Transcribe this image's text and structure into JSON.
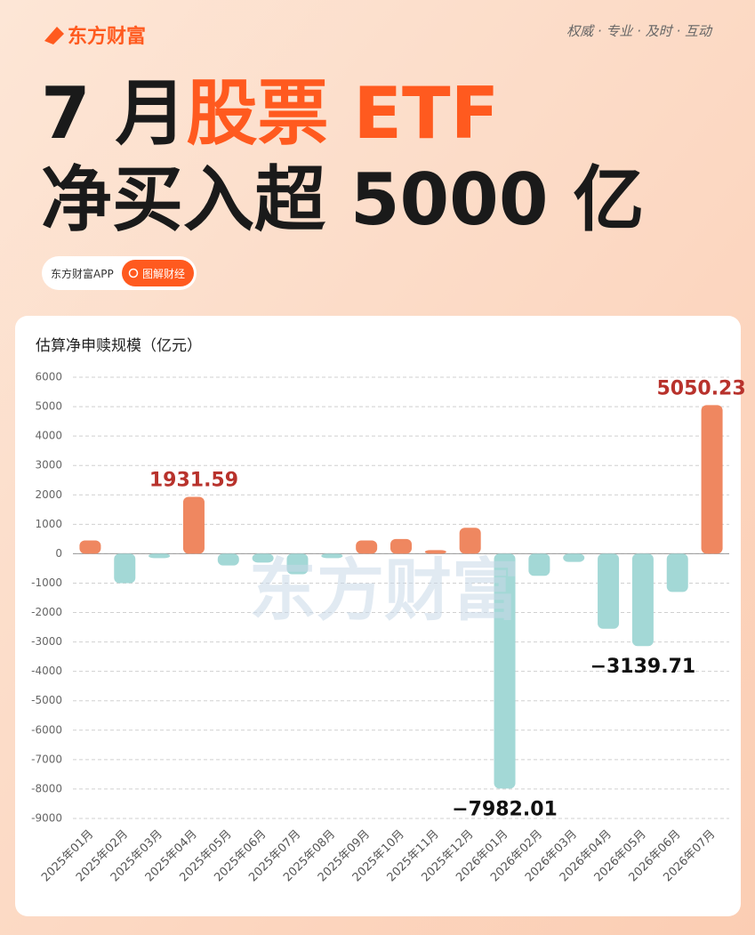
{
  "header": {
    "logo": "东方财富",
    "slogan": "权威 · 专业 · 及时 · 互动",
    "title_line1": [
      "7 月",
      "股票 ETF"
    ],
    "title_line2": "净买入超 5000 亿",
    "badge": "东方财富APP",
    "badge_button": "图解财经",
    "watermark": "东方财富"
  },
  "chart_data": {
    "type": "bar",
    "title": "估算净申赎规模（亿元）",
    "categories": [
      "2025年01月",
      "2025年02月",
      "2025年03月",
      "2025年04月",
      "2025年05月",
      "2025年06月",
      "2025年07月",
      "2025年08月",
      "2025年09月",
      "2025年10月",
      "2025年11月",
      "2025年12月",
      "2026年01月",
      "2026年02月",
      "2026年03月",
      "2026年04月",
      "2026年05月",
      "2026年06月",
      "2026年07月"
    ],
    "values": [
      450,
      -1000,
      -150,
      1931.59,
      -400,
      -300,
      -700,
      -150,
      450,
      500,
      120,
      880,
      -7982.01,
      -750,
      -280,
      -2550,
      -3139.71,
      -1300,
      5050.23
    ],
    "value_labels": [
      null,
      null,
      null,
      "1931.59",
      null,
      null,
      null,
      null,
      null,
      null,
      null,
      null,
      "−7982.01",
      null,
      null,
      null,
      "−3139.71",
      null,
      "5050.23"
    ],
    "colors": {
      "positive": "#ef8760",
      "negative": "#a3d8d6"
    },
    "ylim": [
      -9000,
      6000
    ],
    "yticks": [
      -9000,
      -8000,
      -7000,
      -6000,
      -5000,
      -4000,
      -3000,
      -2000,
      -1000,
      0,
      1000,
      2000,
      3000,
      4000,
      5000,
      6000
    ],
    "grid": true
  }
}
